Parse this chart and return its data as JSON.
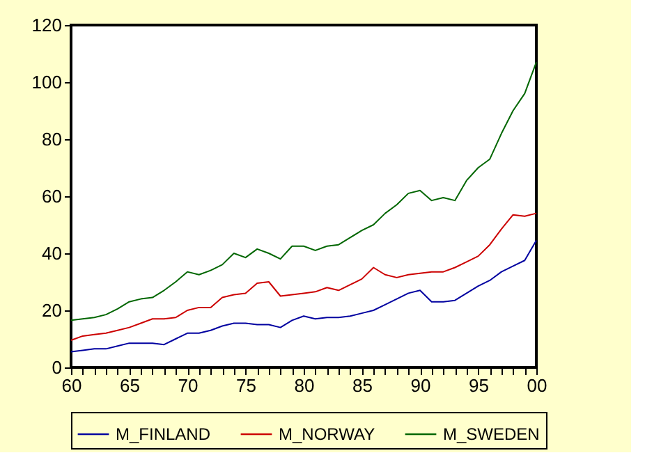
{
  "chart_data": {
    "type": "line",
    "x": [
      1960,
      1961,
      1962,
      1963,
      1964,
      1965,
      1966,
      1967,
      1968,
      1969,
      1970,
      1971,
      1972,
      1973,
      1974,
      1975,
      1976,
      1977,
      1978,
      1979,
      1980,
      1981,
      1982,
      1983,
      1984,
      1985,
      1986,
      1987,
      1988,
      1989,
      1990,
      1991,
      1992,
      1993,
      1994,
      1995,
      1996,
      1997,
      1998,
      1999,
      2000
    ],
    "series": [
      {
        "name": "M_FINLAND",
        "color": "#0000a0",
        "values": [
          5.5,
          6,
          6.5,
          6.5,
          7.5,
          8.5,
          8.5,
          8.5,
          8,
          10,
          12,
          12,
          13,
          14.5,
          15.5,
          15.5,
          15,
          15,
          14,
          16.5,
          18,
          17,
          17.5,
          17.5,
          18,
          19,
          20,
          22,
          24,
          26,
          27,
          23,
          23,
          23.5,
          26,
          28.5,
          30.5,
          33.5,
          35.5,
          37.5,
          44.5
        ]
      },
      {
        "name": "M_NORWAY",
        "color": "#cc0000",
        "values": [
          9.5,
          11,
          11.5,
          12,
          13,
          14,
          15.5,
          17,
          17,
          17.5,
          20,
          21,
          21,
          24.5,
          25.5,
          26,
          29.5,
          30,
          25,
          25.5,
          26,
          26.5,
          28,
          27,
          29,
          31,
          35,
          32.5,
          31.5,
          32.5,
          33,
          33.5,
          33.5,
          35,
          37,
          39,
          43,
          48.5,
          53.5,
          53,
          54
        ]
      },
      {
        "name": "M_SWEDEN",
        "color": "#006600",
        "values": [
          16.5,
          17,
          17.5,
          18.5,
          20.5,
          23,
          24,
          24.5,
          27,
          30,
          33.5,
          32.5,
          34,
          36,
          40,
          38.5,
          41.5,
          40,
          38,
          42.5,
          42.5,
          41,
          42.5,
          43,
          45.5,
          48,
          50,
          54,
          57,
          61,
          62,
          58.5,
          59.5,
          58.5,
          65.5,
          70,
          73,
          82,
          90,
          96,
          107
        ]
      }
    ],
    "xlim": [
      1960,
      2000
    ],
    "xticks": [
      {
        "value": 1960,
        "label": "60"
      },
      {
        "value": 1961,
        "label": null
      },
      {
        "value": 1962,
        "label": null
      },
      {
        "value": 1963,
        "label": null
      },
      {
        "value": 1964,
        "label": null
      },
      {
        "value": 1965,
        "label": "65"
      },
      {
        "value": 1966,
        "label": null
      },
      {
        "value": 1967,
        "label": null
      },
      {
        "value": 1968,
        "label": null
      },
      {
        "value": 1969,
        "label": null
      },
      {
        "value": 1970,
        "label": "70"
      },
      {
        "value": 1971,
        "label": null
      },
      {
        "value": 1972,
        "label": null
      },
      {
        "value": 1973,
        "label": null
      },
      {
        "value": 1974,
        "label": null
      },
      {
        "value": 1975,
        "label": "75"
      },
      {
        "value": 1976,
        "label": null
      },
      {
        "value": 1977,
        "label": null
      },
      {
        "value": 1978,
        "label": null
      },
      {
        "value": 1979,
        "label": null
      },
      {
        "value": 1980,
        "label": "80"
      },
      {
        "value": 1981,
        "label": null
      },
      {
        "value": 1982,
        "label": null
      },
      {
        "value": 1983,
        "label": null
      },
      {
        "value": 1984,
        "label": null
      },
      {
        "value": 1985,
        "label": "85"
      },
      {
        "value": 1986,
        "label": null
      },
      {
        "value": 1987,
        "label": null
      },
      {
        "value": 1988,
        "label": null
      },
      {
        "value": 1989,
        "label": null
      },
      {
        "value": 1990,
        "label": "90"
      },
      {
        "value": 1991,
        "label": null
      },
      {
        "value": 1992,
        "label": null
      },
      {
        "value": 1993,
        "label": null
      },
      {
        "value": 1994,
        "label": null
      },
      {
        "value": 1995,
        "label": "95"
      },
      {
        "value": 1996,
        "label": null
      },
      {
        "value": 1997,
        "label": null
      },
      {
        "value": 1998,
        "label": null
      },
      {
        "value": 1999,
        "label": null
      },
      {
        "value": 2000,
        "label": "00"
      }
    ],
    "ylim": [
      0,
      120
    ],
    "yticks": [
      0,
      20,
      40,
      60,
      80,
      100,
      120
    ],
    "grid": false,
    "legend": "bottom",
    "marker": "none",
    "line_style": "solid"
  }
}
